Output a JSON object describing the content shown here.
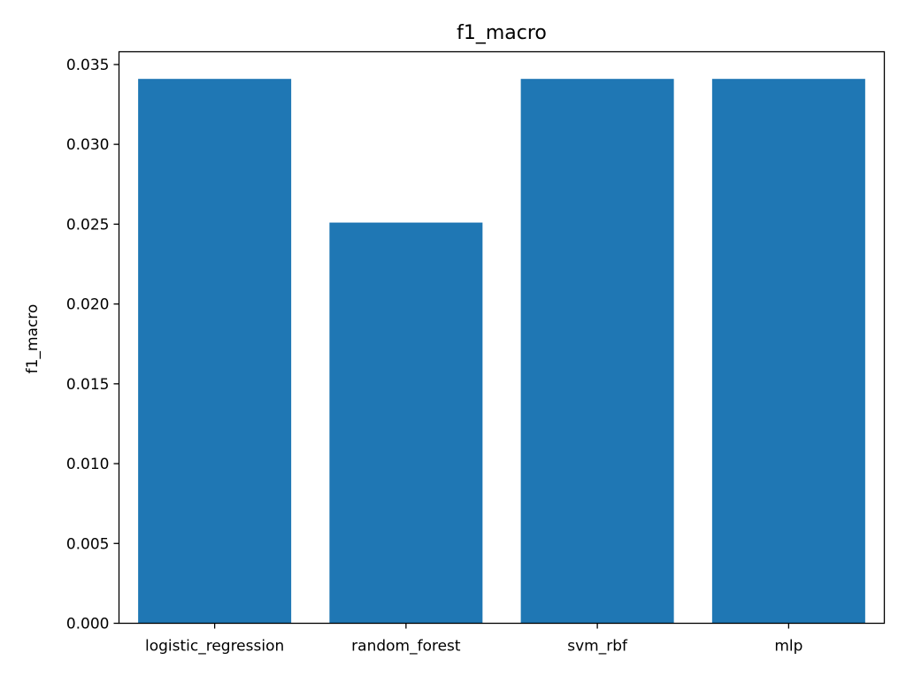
{
  "chart_data": {
    "type": "bar",
    "title": "f1_macro",
    "xlabel": "",
    "ylabel": "f1_macro",
    "categories": [
      "logistic_regression",
      "random_forest",
      "svm_rbf",
      "mlp"
    ],
    "values": [
      0.0341,
      0.0251,
      0.0341,
      0.0341
    ],
    "ylim": [
      0,
      0.0358
    ],
    "yticks": [
      0.0,
      0.005,
      0.01,
      0.015,
      0.02,
      0.025,
      0.03,
      0.035
    ],
    "ytick_labels": [
      "0.000",
      "0.005",
      "0.010",
      "0.015",
      "0.020",
      "0.025",
      "0.030",
      "0.035"
    ],
    "grid": false,
    "bar_color": "#1f77b4"
  }
}
